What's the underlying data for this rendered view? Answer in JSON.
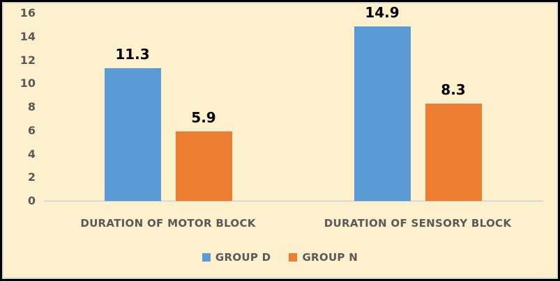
{
  "chart": {
    "background_color": "#FDF1CD",
    "outer_border_color": "#000000",
    "inner_border_color": "#D8D8D8",
    "axis_line_color": "#D9D9D9",
    "axis_text_color": "#595959",
    "data_label_color": "#000000"
  },
  "chart_data": {
    "type": "bar",
    "title": "",
    "xlabel": "",
    "ylabel": "",
    "categories": [
      "DURATION OF MOTOR BLOCK",
      "DURATION OF SENSORY BLOCK"
    ],
    "series": [
      {
        "name": "GROUP D",
        "color": "#5B9BD5",
        "values": [
          11.3,
          14.9
        ]
      },
      {
        "name": "GROUP N",
        "color": "#ED7D31",
        "values": [
          5.9,
          8.3
        ]
      }
    ],
    "ylim": [
      0,
      16
    ],
    "yticks": [
      0,
      2,
      4,
      6,
      8,
      10,
      12,
      14,
      16
    ],
    "grid": false,
    "data_labels": true,
    "legend_position": "bottom"
  }
}
